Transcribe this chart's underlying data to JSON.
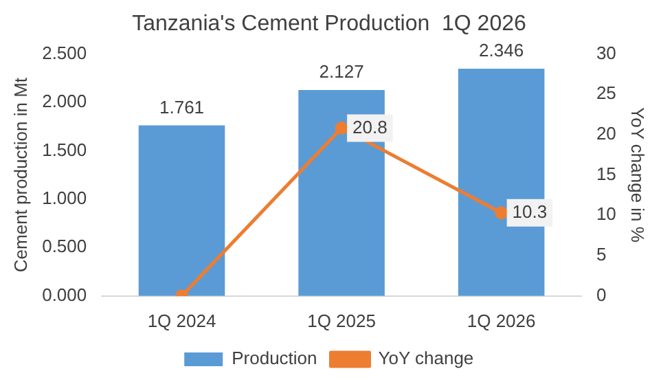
{
  "chart_data": {
    "type": "bar",
    "title": "Tanzania's Cement Production  1Q 2026",
    "ylabel": "Cement production in Mt",
    "y2label": "YoY change in %",
    "categories": [
      "1Q 2024",
      "1Q 2025",
      "1Q 2026"
    ],
    "series": [
      {
        "name": "Production",
        "color": "#5b9bd5",
        "values": [
          1.761,
          2.127,
          2.346
        ],
        "value_labels": [
          "1.761",
          "2.127",
          "2.346"
        ]
      },
      {
        "name": "YoY change",
        "type": "line",
        "axis": "y2",
        "color": "#ed7d31",
        "values": [
          0,
          20.8,
          10.3
        ],
        "value_labels": [
          null,
          "20.8",
          "10.3"
        ]
      }
    ],
    "ylim": [
      0,
      2.5
    ],
    "yticks": [
      {
        "value": 0,
        "label": "0.000"
      },
      {
        "value": 0.5,
        "label": "0.500"
      },
      {
        "value": 1,
        "label": "1.000"
      },
      {
        "value": 1.5,
        "label": "1.500"
      },
      {
        "value": 2,
        "label": "2.000"
      },
      {
        "value": 2.5,
        "label": "2.500"
      }
    ],
    "y2lim": [
      0,
      30
    ],
    "y2ticks": [
      0,
      5,
      10,
      15,
      20,
      25,
      30
    ],
    "legend": "bottom",
    "marker": "circle",
    "line_style": "solid"
  }
}
